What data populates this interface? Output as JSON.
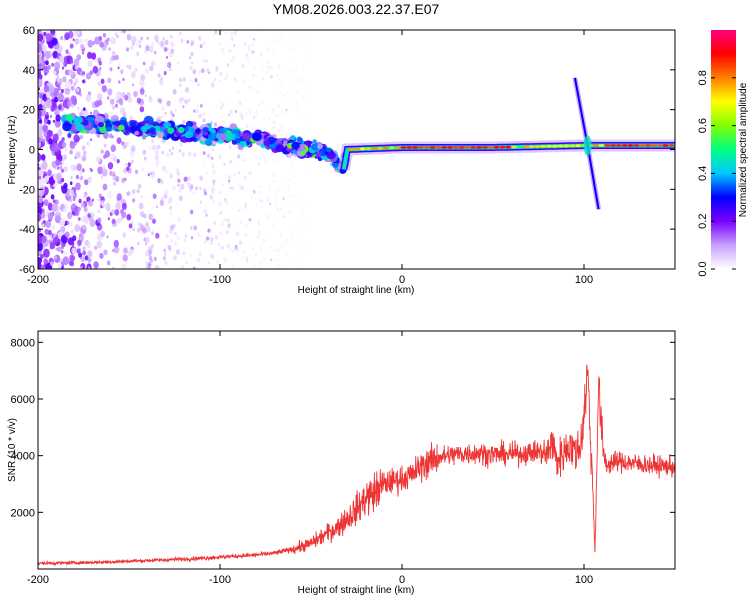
{
  "title": "YM08.2026.003.22.37.E07",
  "chart_data": [
    {
      "type": "heatmap",
      "xlabel": "Height of straight line (km)",
      "ylabel": "Frequency (Hz)",
      "xlim": [
        -200,
        150
      ],
      "ylim": [
        -60,
        60
      ],
      "x_ticks": [
        -200,
        -100,
        0,
        100
      ],
      "y_ticks": [
        60,
        40,
        20,
        0,
        -20,
        -40,
        -60
      ],
      "colorbar": {
        "label": "Normalized spectral amplitude",
        "range": [
          0,
          1
        ],
        "ticks": [
          0.0,
          0.2,
          0.4,
          0.6,
          0.8
        ],
        "colors": [
          "#ffffff",
          "#c8a0ff",
          "#7a00ff",
          "#0000ff",
          "#00c8ff",
          "#00ff80",
          "#80ff00",
          "#ffff00",
          "#ff8000",
          "#ff0000",
          "#ff0080"
        ]
      },
      "ridge": [
        {
          "x": -200,
          "f": 14
        },
        {
          "x": -160,
          "f": 12
        },
        {
          "x": -120,
          "f": 9
        },
        {
          "x": -80,
          "f": 5
        },
        {
          "x": -40,
          "f": -2
        },
        {
          "x": -32,
          "f": -10
        },
        {
          "x": -30,
          "f": 0
        },
        {
          "x": 0,
          "f": 1
        },
        {
          "x": 50,
          "f": 1
        },
        {
          "x": 100,
          "f": 2
        },
        {
          "x": 150,
          "f": 2
        }
      ],
      "chirp": [
        {
          "x": 95,
          "f": 36
        },
        {
          "x": 102,
          "f": 2
        },
        {
          "x": 108,
          "f": -30
        }
      ]
    },
    {
      "type": "line",
      "xlabel": "Height of straight line (km)",
      "ylabel": "SNR (10 * v/v)",
      "xlim": [
        -200,
        150
      ],
      "ylim": [
        0,
        8400
      ],
      "x_ticks": [
        -200,
        -100,
        0,
        100
      ],
      "y_ticks": [
        2000,
        4000,
        6000,
        8000
      ],
      "color": "#ee3333",
      "series": [
        {
          "x": [
            -200,
            -180,
            -160,
            -140,
            -120,
            -100,
            -80,
            -70,
            -60,
            -50,
            -40,
            -35,
            -30,
            -25,
            -20,
            -15,
            -10,
            -5,
            0,
            5,
            10,
            15,
            20,
            25,
            30,
            40,
            50,
            60,
            70,
            75,
            80,
            82,
            85,
            90,
            92,
            95,
            98,
            100,
            102,
            104,
            105,
            106,
            107,
            108,
            110,
            112,
            115,
            120,
            130,
            140,
            150
          ],
          "values": [
            200,
            220,
            250,
            300,
            350,
            420,
            500,
            560,
            700,
            900,
            1300,
            1500,
            1800,
            2100,
            2500,
            2700,
            3000,
            3100,
            3200,
            3300,
            3600,
            3800,
            3950,
            4000,
            4050,
            4100,
            4050,
            4050,
            4100,
            4150,
            4000,
            4600,
            3800,
            4200,
            4400,
            4100,
            4300,
            5500,
            7000,
            4000,
            2600,
            600,
            3500,
            6500,
            4500,
            3700,
            3750,
            3800,
            3700,
            3650,
            3600
          ]
        }
      ]
    }
  ]
}
